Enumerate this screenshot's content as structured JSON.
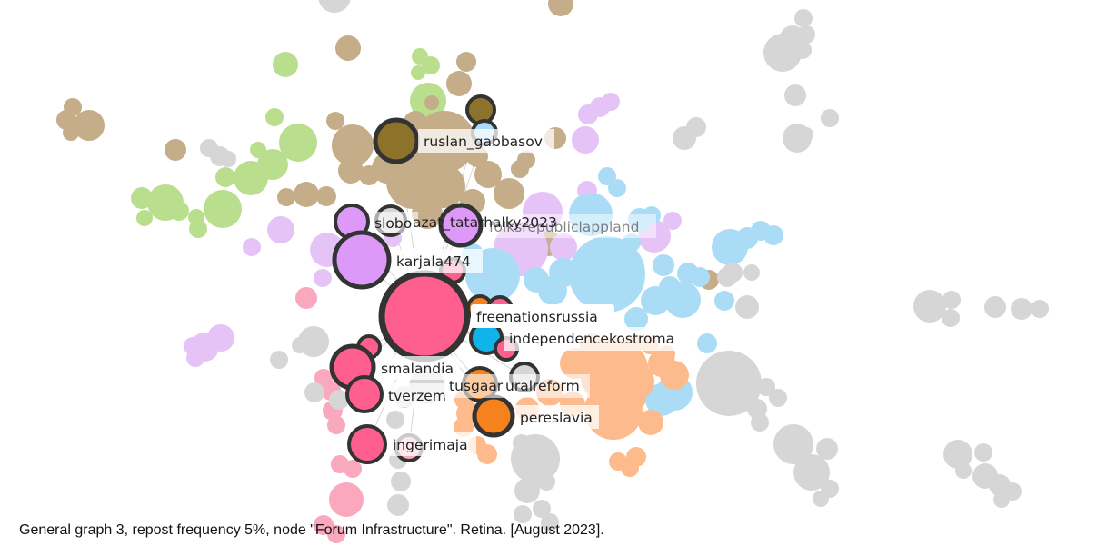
{
  "graph": {
    "labels": {
      "ruslan_gabbasov": "ruslan_gabbasov",
      "slobozhanshchina": "slobo",
      "azat_tatarhalky2023": "azat_tatarhalky2023",
      "folksrepubliclappland": "folksrepubliclappland",
      "karjala474": "karjala474",
      "freenationsrussia": "freenationsrussia",
      "independencekostroma": "independencekostroma",
      "smalandia": "smalandia",
      "tverzem": "tverzem",
      "tusgaar": "tusgaar",
      "uralreform": "uralreform",
      "pereslavia": "pereslavia",
      "ingerimaja": "ingerimaja"
    },
    "colors": {
      "tan": "#c4ad88",
      "dark_tan": "#8c722a",
      "green": "#b9df8e",
      "lilac": "#e6c3f6",
      "violet": "#dd99f7",
      "light_blue": "#aadcf6",
      "cyan": "#10b4e8",
      "pink": "#ff5f8e",
      "light_pink": "#f9a8bd",
      "orange": "#f5821d",
      "peach": "#fdba8c",
      "gray": "#d6d6d6",
      "outline": "#333333"
    }
  },
  "caption": "General graph 3, repost frequency 5%, node \"Forum Infrastructure\". Retina. [August 2023]."
}
